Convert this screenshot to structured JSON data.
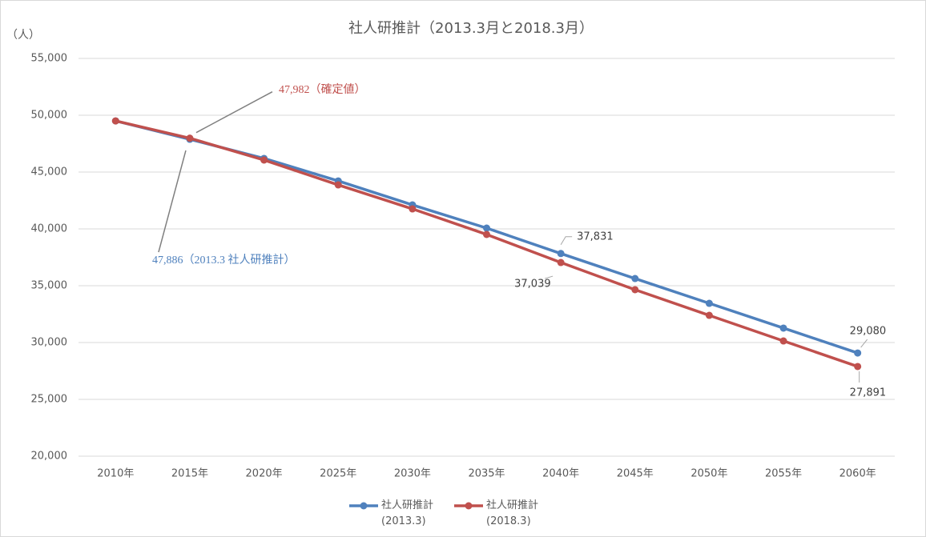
{
  "chart_data": {
    "type": "line",
    "title": "社人研推計（2013.3月と2018.3月）",
    "y_label": "（人）",
    "categories": [
      "2010年",
      "2015年",
      "2020年",
      "2025年",
      "2030年",
      "2035年",
      "2040年",
      "2045年",
      "2050年",
      "2055年",
      "2060年"
    ],
    "series": [
      {
        "name": "社人研推計\n(2013.3)",
        "color": "#4f81bd",
        "values": [
          49500,
          47886,
          46200,
          44220,
          42110,
          40070,
          37831,
          35630,
          33450,
          31270,
          29080
        ],
        "value_labels": [
          null,
          "47,886（2013.3 社人研推計）",
          null,
          null,
          null,
          null,
          "37,831",
          null,
          null,
          null,
          "29,080"
        ]
      },
      {
        "name": "社人研推計\n(2018.3)",
        "color": "#c0504d",
        "values": [
          49500,
          47982,
          46060,
          43870,
          41760,
          39510,
          37039,
          34650,
          32390,
          30140,
          27891
        ],
        "value_labels": [
          null,
          "47,982（確定値）",
          null,
          null,
          null,
          null,
          "37,039",
          null,
          null,
          null,
          "27,891"
        ]
      }
    ],
    "ylim": [
      20000,
      55000
    ],
    "yticks": [
      {
        "value": 20000,
        "label": "20,000"
      },
      {
        "value": 25000,
        "label": "25,000"
      },
      {
        "value": 30000,
        "label": "30,000"
      },
      {
        "value": 35000,
        "label": "35,000"
      },
      {
        "value": 40000,
        "label": "40,000"
      },
      {
        "value": 45000,
        "label": "45,000"
      },
      {
        "value": 50000,
        "label": "50,000"
      },
      {
        "value": 55000,
        "label": "55,000"
      }
    ],
    "grid": true
  }
}
